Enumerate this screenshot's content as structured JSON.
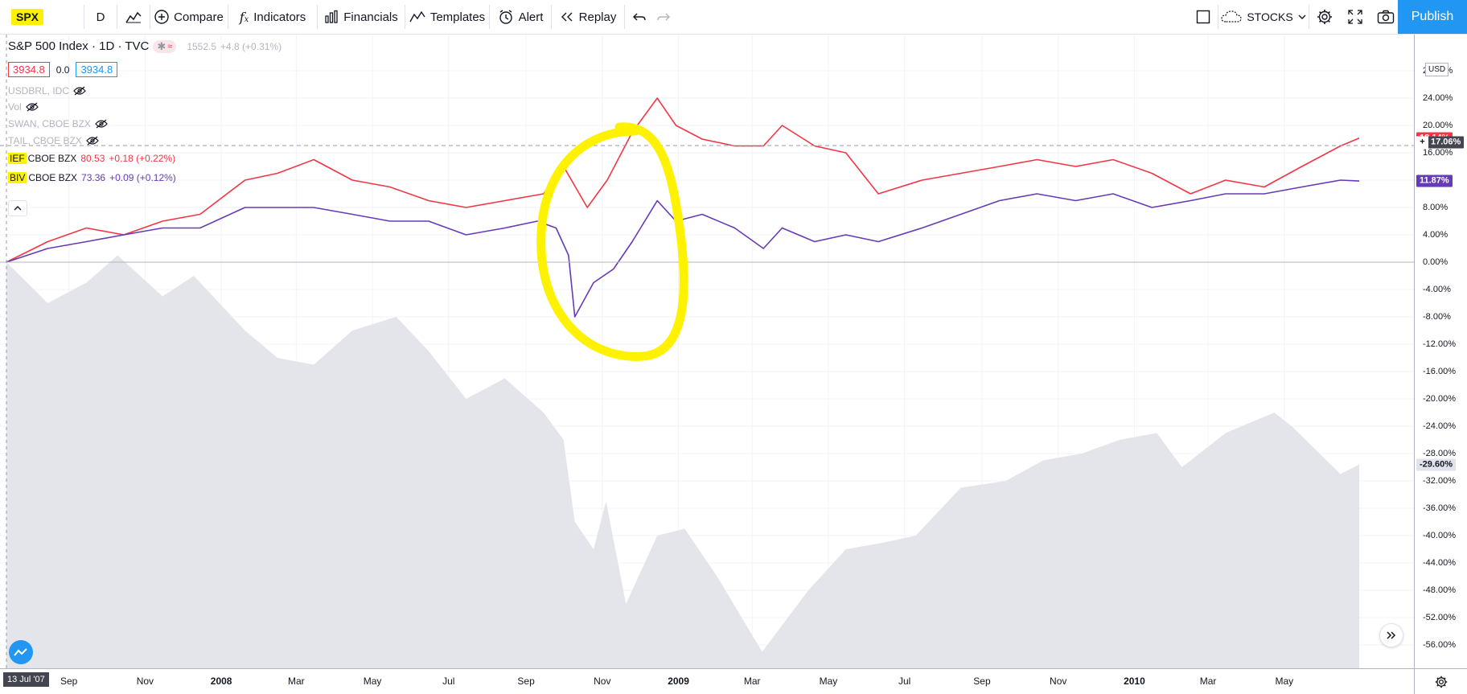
{
  "toolbar": {
    "symbol": "SPX",
    "interval": "D",
    "compare": "Compare",
    "indicators": "Indicators",
    "financials": "Financials",
    "templates": "Templates",
    "alert": "Alert",
    "replay": "Replay",
    "market": "STOCKS",
    "publish": "Publish"
  },
  "legend": {
    "title": "S&P 500 Index · 1D · TVC",
    "status_price": "1552.5",
    "status_change": "+4.8 (+0.31%)",
    "bid": "3934.8",
    "spread": "0.0",
    "ask": "3934.8",
    "hidden_series": [
      {
        "name": "USDBRL, IDC"
      },
      {
        "name": "Vol"
      },
      {
        "name": "SWAN, CBOE BZX"
      },
      {
        "name": "TAIL, CBOE BZX"
      }
    ],
    "ief": {
      "symbol": "IEF",
      "exchange": "CBOE BZX",
      "price": "80.53",
      "change": "+0.18 (+0.22%)"
    },
    "biv": {
      "symbol": "BIV",
      "exchange": "CBOE BZX",
      "price": "73.36",
      "change": "+0.09 (+0.12%)"
    }
  },
  "price_scale": {
    "currency": "USD",
    "ticks": [
      "28.00%",
      "24.00%",
      "20.00%",
      "16.00%",
      "12.00%",
      "8.00%",
      "4.00%",
      "0.00%",
      "-4.00%",
      "-8.00%",
      "-12.00%",
      "-16.00%",
      "-20.00%",
      "-24.00%",
      "-28.00%",
      "-32.00%",
      "-36.00%",
      "-40.00%",
      "-44.00%",
      "-48.00%",
      "-52.00%",
      "-56.00%",
      "-60.00%"
    ],
    "badge_ief_hidden": "18.14%",
    "badge_crosshair": "17.06%",
    "badge_biv": "11.87%",
    "badge_spx": "-29.60%"
  },
  "time_scale": {
    "start": "13 Jul '07",
    "labels": [
      {
        "t": "Sep",
        "bold": false
      },
      {
        "t": "Nov",
        "bold": false
      },
      {
        "t": "2008",
        "bold": true
      },
      {
        "t": "Mar",
        "bold": false
      },
      {
        "t": "May",
        "bold": false
      },
      {
        "t": "Jul",
        "bold": false
      },
      {
        "t": "Sep",
        "bold": false
      },
      {
        "t": "Nov",
        "bold": false
      },
      {
        "t": "2009",
        "bold": true
      },
      {
        "t": "Mar",
        "bold": false
      },
      {
        "t": "May",
        "bold": false
      },
      {
        "t": "Jul",
        "bold": false
      },
      {
        "t": "Sep",
        "bold": false
      },
      {
        "t": "Nov",
        "bold": false
      },
      {
        "t": "2010",
        "bold": true
      },
      {
        "t": "Mar",
        "bold": false
      },
      {
        "t": "May",
        "bold": false
      }
    ]
  },
  "colors": {
    "ief": "#f23645",
    "biv": "#673ab7",
    "spx_area": "#e4e5ea",
    "highlight": "#fff200",
    "accent": "#2196f3"
  },
  "chart_data": {
    "type": "line",
    "x_range": [
      "2007-07-13",
      "2010-06-30"
    ],
    "ylim": [
      -62,
      30
    ],
    "y_unit": "%",
    "crosshair_y": 17.06,
    "series": [
      {
        "name": "SPX",
        "style": "area",
        "x": [
          "2007-07-13",
          "2007-08-15",
          "2007-09-15",
          "2007-10-10",
          "2007-11-15",
          "2007-12-10",
          "2008-01-20",
          "2008-02-15",
          "2008-03-15",
          "2008-04-15",
          "2008-05-20",
          "2008-06-15",
          "2008-07-15",
          "2008-08-15",
          "2008-09-15",
          "2008-10-01",
          "2008-10-10",
          "2008-10-25",
          "2008-11-04",
          "2008-11-20",
          "2008-12-15",
          "2009-01-06",
          "2009-02-01",
          "2009-03-09",
          "2009-04-15",
          "2009-05-15",
          "2009-06-15",
          "2009-07-10",
          "2009-08-15",
          "2009-09-20",
          "2009-10-20",
          "2009-11-20",
          "2009-12-20",
          "2010-01-19",
          "2010-02-08",
          "2010-03-15",
          "2010-04-23",
          "2010-05-07",
          "2010-06-15",
          "2010-06-30"
        ],
        "values": [
          0,
          -6,
          -3,
          1,
          -5,
          -2,
          -10,
          -14,
          -15,
          -10,
          -8,
          -13,
          -20,
          -17,
          -22,
          -26,
          -38,
          -42,
          -35,
          -50,
          -40,
          -39,
          -46,
          -57,
          -48,
          -42,
          -41,
          -40,
          -33,
          -32,
          -29,
          -28,
          -26,
          -25,
          -30,
          -25,
          -22,
          -24,
          -31,
          -29.6
        ]
      },
      {
        "name": "IEF",
        "x": [
          "2007-07-13",
          "2007-08-15",
          "2007-09-15",
          "2007-10-15",
          "2007-11-15",
          "2007-12-15",
          "2008-01-20",
          "2008-02-15",
          "2008-03-15",
          "2008-04-15",
          "2008-05-15",
          "2008-06-15",
          "2008-07-15",
          "2008-08-15",
          "2008-09-15",
          "2008-10-01",
          "2008-10-20",
          "2008-11-05",
          "2008-11-25",
          "2008-12-15",
          "2008-12-30",
          "2009-01-20",
          "2009-02-15",
          "2009-03-10",
          "2009-03-25",
          "2009-04-20",
          "2009-05-15",
          "2009-06-10",
          "2009-07-15",
          "2009-08-15",
          "2009-09-15",
          "2009-10-15",
          "2009-11-15",
          "2009-12-15",
          "2010-01-15",
          "2010-02-15",
          "2010-03-15",
          "2010-04-15",
          "2010-05-15",
          "2010-06-15",
          "2010-06-30"
        ],
        "values": [
          0,
          3,
          5,
          4,
          6,
          7,
          12,
          13,
          15,
          12,
          11,
          9,
          8,
          9,
          10,
          14,
          8,
          12,
          19,
          24,
          20,
          18,
          17,
          17,
          20,
          17,
          16,
          10,
          12,
          13,
          14,
          15,
          14,
          15,
          13,
          10,
          12,
          11,
          14,
          17,
          18.14
        ]
      },
      {
        "name": "BIV",
        "x": [
          "2007-07-13",
          "2007-08-15",
          "2007-09-15",
          "2007-10-15",
          "2007-11-15",
          "2007-12-15",
          "2008-01-20",
          "2008-02-15",
          "2008-03-15",
          "2008-04-15",
          "2008-05-15",
          "2008-06-15",
          "2008-07-15",
          "2008-08-15",
          "2008-09-10",
          "2008-09-25",
          "2008-10-05",
          "2008-10-10",
          "2008-10-25",
          "2008-11-10",
          "2008-11-25",
          "2008-12-15",
          "2008-12-30",
          "2009-01-20",
          "2009-02-15",
          "2009-03-10",
          "2009-03-25",
          "2009-04-20",
          "2009-05-15",
          "2009-06-10",
          "2009-07-15",
          "2009-08-15",
          "2009-09-15",
          "2009-10-15",
          "2009-11-15",
          "2009-12-15",
          "2010-01-15",
          "2010-02-15",
          "2010-03-15",
          "2010-04-15",
          "2010-05-15",
          "2010-06-15",
          "2010-06-30"
        ],
        "values": [
          0,
          2,
          3,
          4,
          5,
          5,
          8,
          8,
          8,
          7,
          6,
          6,
          4,
          5,
          6,
          5,
          1,
          -8,
          -3,
          -1,
          3,
          9,
          6,
          7,
          5,
          2,
          5,
          3,
          4,
          3,
          5,
          7,
          9,
          10,
          9,
          10,
          8,
          9,
          10,
          10,
          11,
          12,
          11.87
        ]
      }
    ]
  }
}
